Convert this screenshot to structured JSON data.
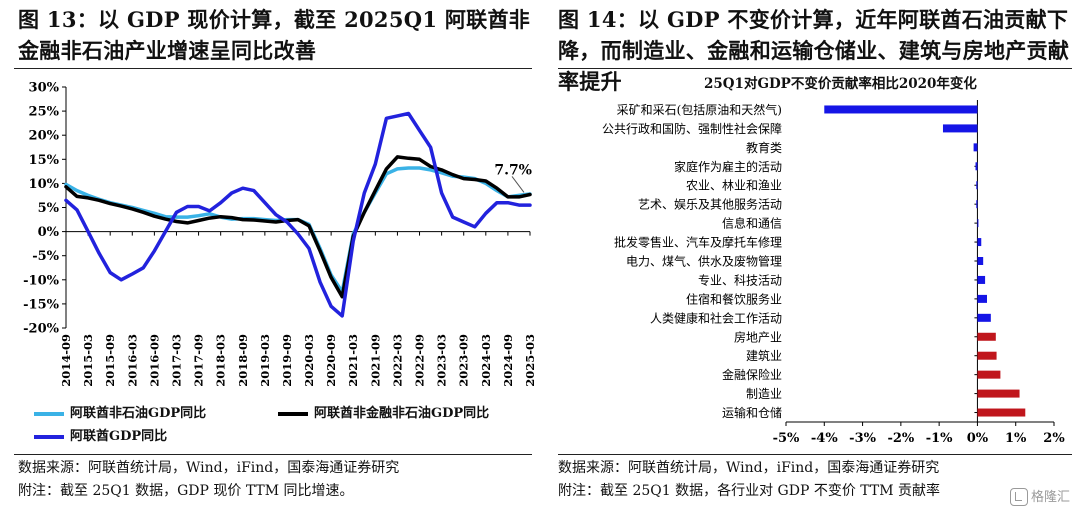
{
  "left": {
    "title": "图 13：以 GDP 现价计算，截至 2025Q1 阿联酋非金融非石油产业增速呈同比改善",
    "source": "数据来源：阿联酋统计局，Wind，iFind，国泰海通证券研究",
    "note": "附注：截至 25Q1 数据，GDP 现价 TTM 同比增速。",
    "chart_data": {
      "type": "line",
      "x": [
        "2014-09",
        "2014-12",
        "2015-03",
        "2015-06",
        "2015-09",
        "2015-12",
        "2016-03",
        "2016-06",
        "2016-09",
        "2016-12",
        "2017-03",
        "2017-06",
        "2017-09",
        "2017-12",
        "2018-03",
        "2018-06",
        "2018-09",
        "2018-12",
        "2019-03",
        "2019-06",
        "2019-09",
        "2019-12",
        "2020-03",
        "2020-06",
        "2020-09",
        "2020-12",
        "2021-03",
        "2021-06",
        "2021-09",
        "2021-12",
        "2022-03",
        "2022-06",
        "2022-09",
        "2022-12",
        "2023-03",
        "2023-06",
        "2023-09",
        "2023-12",
        "2024-03",
        "2024-06",
        "2024-09",
        "2024-12",
        "2025-03"
      ],
      "x_ticks": [
        "2014-09",
        "2015-03",
        "2015-09",
        "2016-03",
        "2016-09",
        "2017-03",
        "2017-09",
        "2018-03",
        "2018-09",
        "2019-03",
        "2019-09",
        "2020-03",
        "2020-09",
        "2021-03",
        "2021-09",
        "2022-03",
        "2022-09",
        "2023-03",
        "2023-09",
        "2024-03",
        "2024-09",
        "2025-03"
      ],
      "ylim": [
        -0.2,
        0.3
      ],
      "y_ticks": [
        -0.2,
        -0.15,
        -0.1,
        -0.05,
        0,
        0.05,
        0.1,
        0.15,
        0.2,
        0.25,
        0.3
      ],
      "y_tick_labels": [
        "-20%",
        "-15%",
        "-10%",
        "-5%",
        "0%",
        "5%",
        "10%",
        "15%",
        "20%",
        "25%",
        "30%"
      ],
      "series": [
        {
          "name": "阿联酋非石油GDP同比",
          "color": "#3ab2e6",
          "values": [
            0.098,
            0.085,
            0.075,
            0.067,
            0.06,
            0.055,
            0.05,
            0.044,
            0.038,
            0.031,
            0.03,
            0.03,
            0.033,
            0.037,
            0.03,
            0.026,
            0.027,
            0.027,
            0.025,
            0.023,
            0.025,
            0.025,
            0.015,
            -0.035,
            -0.09,
            -0.125,
            -0.005,
            0.04,
            0.08,
            0.12,
            0.13,
            0.132,
            0.132,
            0.128,
            0.122,
            0.115,
            0.113,
            0.11,
            0.1,
            0.085,
            0.072,
            0.075,
            0.078
          ]
        },
        {
          "name": "阿联酋非金融非石油GDP同比",
          "color": "#000000",
          "values": [
            0.093,
            0.073,
            0.07,
            0.065,
            0.058,
            0.053,
            0.047,
            0.04,
            0.032,
            0.026,
            0.021,
            0.018,
            0.023,
            0.028,
            0.031,
            0.029,
            0.025,
            0.024,
            0.022,
            0.02,
            0.023,
            0.025,
            0.012,
            -0.04,
            -0.095,
            -0.135,
            -0.01,
            0.04,
            0.085,
            0.13,
            0.155,
            0.152,
            0.15,
            0.135,
            0.128,
            0.118,
            0.11,
            0.108,
            0.105,
            0.09,
            0.072,
            0.072,
            0.077
          ]
        },
        {
          "name": "阿联酋GDP同比",
          "color": "#2222dd",
          "values": [
            0.065,
            0.045,
            0.0,
            -0.045,
            -0.085,
            -0.1,
            -0.088,
            -0.075,
            -0.04,
            0.0,
            0.04,
            0.052,
            0.052,
            0.043,
            0.06,
            0.08,
            0.09,
            0.085,
            0.06,
            0.035,
            0.02,
            -0.005,
            -0.035,
            -0.105,
            -0.155,
            -0.175,
            -0.02,
            0.08,
            0.14,
            0.235,
            0.24,
            0.245,
            0.21,
            0.175,
            0.08,
            0.03,
            0.02,
            0.01,
            0.038,
            0.06,
            0.06,
            0.055,
            0.055
          ]
        }
      ],
      "annotation": {
        "text": "7.7%",
        "x": "2025-03",
        "y": 0.077
      }
    }
  },
  "right": {
    "title": "图 14：以 GDP 不变价计算，近年阿联酋石油贡献下降，而制造业、金融和运输仓储业、建筑与房地产贡献率提升",
    "source": "数据来源：阿联酋统计局，Wind，iFind，国泰海通证券研究",
    "note": "附注：截至 25Q1 数据，各行业对 GDP 不变价 TTM 贡献率",
    "chart_data": {
      "type": "bar",
      "orientation": "horizontal",
      "title": "25Q1对GDP不变价贡献率相比2020年变化",
      "categories": [
        "采矿和采石(包括原油和天然气)",
        "公共行政和国防、强制性社会保障",
        "教育类",
        "家庭作为雇主的活动",
        "农业、林业和渔业",
        "艺术、娱乐及其他服务活动",
        "信息和通信",
        "批发零售业、汽车及摩托车修理",
        "电力、煤气、供水及废物管理",
        "专业、科技活动",
        "住宿和餐饮服务业",
        "人类健康和社会工作活动",
        "房地产业",
        "建筑业",
        "金融保险业",
        "制造业",
        "运输和仓储"
      ],
      "values": [
        -0.04,
        -0.009,
        -0.001,
        -0.0005,
        -0.0003,
        -0.0003,
        0.0002,
        0.001,
        0.0015,
        0.002,
        0.0025,
        0.0035,
        0.0048,
        0.005,
        0.006,
        0.011,
        0.0125
      ],
      "colors": [
        "#1515e6",
        "#1515e6",
        "#1515e6",
        "#1515e6",
        "#1515e6",
        "#1515e6",
        "#1515e6",
        "#1515e6",
        "#1515e6",
        "#1515e6",
        "#1515e6",
        "#1515e6",
        "#c0161c",
        "#c0161c",
        "#c0161c",
        "#c0161c",
        "#c0161c"
      ],
      "xlim": [
        -0.05,
        0.02
      ],
      "x_ticks": [
        -0.05,
        -0.04,
        -0.03,
        -0.02,
        -0.01,
        0,
        0.01,
        0.02
      ],
      "x_tick_labels": [
        "-5%",
        "-4%",
        "-3%",
        "-2%",
        "-1%",
        "0%",
        "1%",
        "2%"
      ]
    }
  },
  "watermark": "格隆汇"
}
